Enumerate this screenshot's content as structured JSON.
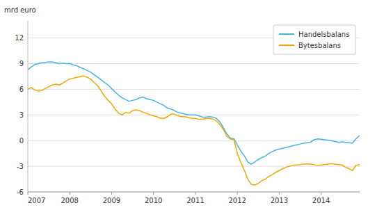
{
  "chart_data": {
    "type": "line",
    "ylabel": "mrd euro",
    "x": [
      2007.0,
      2007.08,
      2007.17,
      2007.25,
      2007.33,
      2007.42,
      2007.5,
      2007.58,
      2007.67,
      2007.75,
      2007.83,
      2007.92,
      2008.0,
      2008.08,
      2008.17,
      2008.25,
      2008.33,
      2008.42,
      2008.5,
      2008.58,
      2008.67,
      2008.75,
      2008.83,
      2008.92,
      2009.0,
      2009.08,
      2009.17,
      2009.25,
      2009.33,
      2009.42,
      2009.5,
      2009.58,
      2009.67,
      2009.75,
      2009.83,
      2009.92,
      2010.0,
      2010.08,
      2010.17,
      2010.25,
      2010.33,
      2010.42,
      2010.5,
      2010.58,
      2010.67,
      2010.75,
      2010.83,
      2010.92,
      2011.0,
      2011.08,
      2011.17,
      2011.25,
      2011.33,
      2011.42,
      2011.5,
      2011.58,
      2011.67,
      2011.75,
      2011.83,
      2011.92,
      2012.0,
      2012.08,
      2012.17,
      2012.25,
      2012.33,
      2012.42,
      2012.5,
      2012.58,
      2012.67,
      2012.75,
      2012.83,
      2012.92,
      2013.0,
      2013.08,
      2013.17,
      2013.25,
      2013.33,
      2013.42,
      2013.5,
      2013.58,
      2013.67,
      2013.75,
      2013.83,
      2013.92,
      2014.0,
      2014.08,
      2014.17,
      2014.25,
      2014.33,
      2014.42,
      2014.5,
      2014.58,
      2014.67,
      2014.75,
      2014.83,
      2014.92
    ],
    "series": [
      {
        "name": "Handelsbalans",
        "color": "#44B4E4",
        "values": [
          8.3,
          8.6,
          8.9,
          9.0,
          9.1,
          9.15,
          9.2,
          9.2,
          9.1,
          9.0,
          9.05,
          9.0,
          9.0,
          8.85,
          8.75,
          8.55,
          8.4,
          8.2,
          8.0,
          7.7,
          7.4,
          7.1,
          6.8,
          6.5,
          6.1,
          5.7,
          5.3,
          5.0,
          4.8,
          4.6,
          4.7,
          4.8,
          5.0,
          5.1,
          4.9,
          4.8,
          4.7,
          4.5,
          4.3,
          4.1,
          3.8,
          3.7,
          3.5,
          3.3,
          3.2,
          3.1,
          3.0,
          3.0,
          3.0,
          2.9,
          2.75,
          2.75,
          2.8,
          2.75,
          2.6,
          2.2,
          1.5,
          0.8,
          0.3,
          0.2,
          -0.5,
          -1.2,
          -1.8,
          -2.5,
          -2.75,
          -2.5,
          -2.2,
          -2.0,
          -1.8,
          -1.5,
          -1.3,
          -1.1,
          -1.0,
          -0.9,
          -0.8,
          -0.7,
          -0.6,
          -0.5,
          -0.4,
          -0.3,
          -0.25,
          -0.2,
          0.1,
          0.2,
          0.15,
          0.1,
          0.05,
          0.0,
          -0.1,
          -0.2,
          -0.15,
          -0.2,
          -0.25,
          -0.3,
          0.2,
          0.6
        ]
      },
      {
        "name": "Bytesbalans",
        "color": "#F5A800",
        "values": [
          6.0,
          6.2,
          5.9,
          5.8,
          5.85,
          6.1,
          6.3,
          6.5,
          6.6,
          6.5,
          6.7,
          7.0,
          7.2,
          7.3,
          7.4,
          7.5,
          7.55,
          7.4,
          7.2,
          6.8,
          6.4,
          5.8,
          5.2,
          4.7,
          4.3,
          3.7,
          3.2,
          3.0,
          3.3,
          3.2,
          3.5,
          3.6,
          3.5,
          3.3,
          3.2,
          3.0,
          2.9,
          2.8,
          2.6,
          2.6,
          2.8,
          3.1,
          3.1,
          2.9,
          2.8,
          2.8,
          2.7,
          2.6,
          2.6,
          2.5,
          2.5,
          2.6,
          2.6,
          2.5,
          2.3,
          1.9,
          1.3,
          0.5,
          0.2,
          0.1,
          -1.5,
          -2.5,
          -3.5,
          -4.5,
          -5.1,
          -5.2,
          -5.0,
          -4.7,
          -4.5,
          -4.2,
          -4.0,
          -3.7,
          -3.5,
          -3.3,
          -3.1,
          -3.0,
          -2.9,
          -2.85,
          -2.8,
          -2.75,
          -2.7,
          -2.75,
          -2.8,
          -2.9,
          -2.85,
          -2.8,
          -2.75,
          -2.7,
          -2.75,
          -2.8,
          -2.85,
          -3.1,
          -3.3,
          -3.5,
          -2.9,
          -2.8
        ]
      }
    ],
    "xlim": [
      2007.0,
      2014.92
    ],
    "xticks": [
      2007,
      2008,
      2009,
      2010,
      2011,
      2012,
      2013,
      2014
    ],
    "ylim": [
      -6,
      14
    ],
    "yticks": [
      -6,
      -3,
      0,
      3,
      6,
      9,
      12
    ],
    "grid": true,
    "legend": "upper right"
  }
}
